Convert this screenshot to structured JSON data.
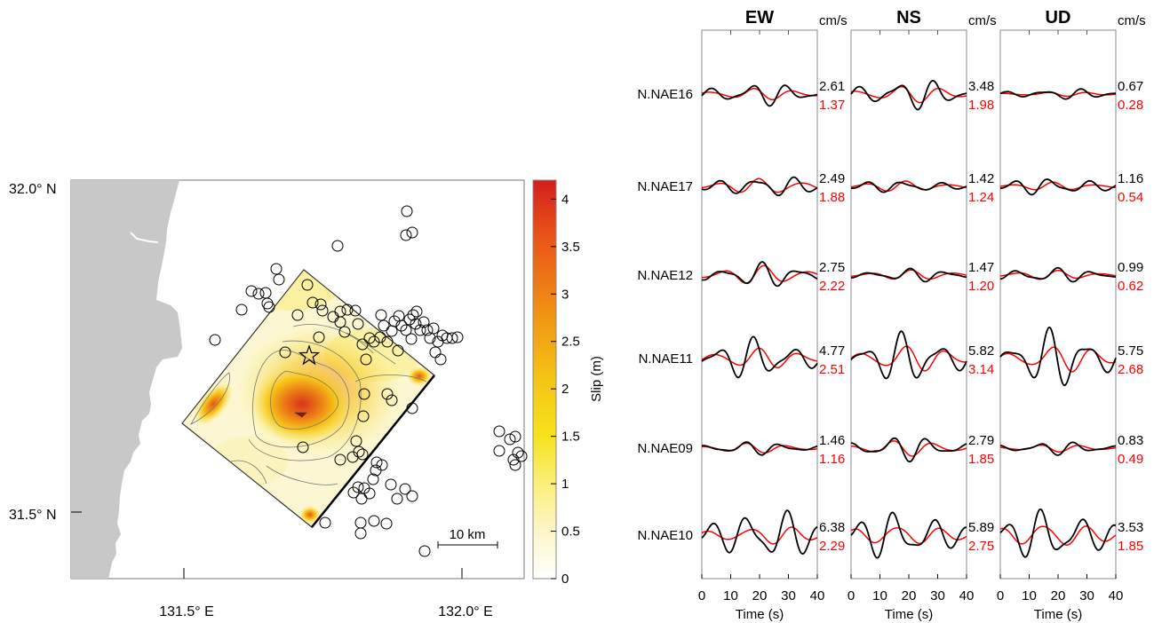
{
  "map": {
    "lat_labels": [
      "32.0° N",
      "31.5° N"
    ],
    "lon_labels": [
      "131.5° E",
      "132.0° E"
    ],
    "scale_bar_label": "10 km",
    "colorbar": {
      "label": "Slip (m)",
      "ticks": [
        "0",
        "0.5",
        "1",
        "1.5",
        "2",
        "2.5",
        "3",
        "3.5",
        "4"
      ],
      "colors": [
        "#ffffff",
        "#fdf6c8",
        "#fbef78",
        "#f7e21c",
        "#f5c416",
        "#f2a114",
        "#ee7a16",
        "#e95418",
        "#e02d1a",
        "#d41e1e"
      ]
    }
  },
  "waveforms": {
    "components": [
      "EW",
      "NS",
      "UD"
    ],
    "unit": "cm/s",
    "x_axis_label": "Time (s)",
    "x_ticks": [
      "0",
      "10",
      "20",
      "30",
      "40"
    ],
    "observed_color": "#000000",
    "synthetic_color": "#ff0000",
    "stations": [
      {
        "name": "N.NAE16",
        "obs": [
          "2.61",
          "3.48",
          "0.67"
        ],
        "syn": [
          "1.37",
          "1.98",
          "0.28"
        ]
      },
      {
        "name": "N.NAE17",
        "obs": [
          "2.49",
          "1.42",
          "1.16"
        ],
        "syn": [
          "1.88",
          "1.24",
          "0.54"
        ]
      },
      {
        "name": "N.NAE12",
        "obs": [
          "2.75",
          "1.47",
          "0.99"
        ],
        "syn": [
          "2.22",
          "1.20",
          "0.62"
        ]
      },
      {
        "name": "N.NAE11",
        "obs": [
          "4.77",
          "5.82",
          "5.75"
        ],
        "syn": [
          "2.51",
          "3.14",
          "2.68"
        ]
      },
      {
        "name": "N.NAE09",
        "obs": [
          "1.46",
          "2.79",
          "0.83"
        ],
        "syn": [
          "1.16",
          "1.85",
          "0.49"
        ]
      },
      {
        "name": "N.NAE10",
        "obs": [
          "6.38",
          "5.89",
          "3.53"
        ],
        "syn": [
          "2.29",
          "2.75",
          "1.85"
        ]
      }
    ]
  }
}
